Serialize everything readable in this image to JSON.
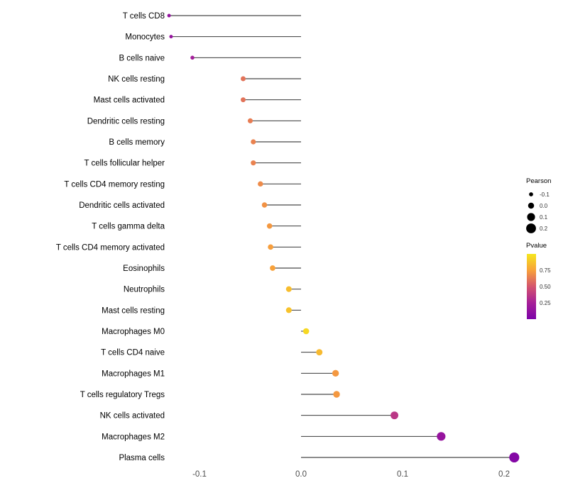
{
  "chart_data": {
    "type": "lollipop",
    "title": "",
    "xlabel": "",
    "ylabel": "",
    "xlim": [
      -0.155,
      0.225
    ],
    "grid": false,
    "x_ticks": [
      {
        "value": -0.1,
        "label": "-0.1"
      },
      {
        "value": 0.0,
        "label": "0.0"
      },
      {
        "value": 0.1,
        "label": "0.1"
      },
      {
        "value": 0.2,
        "label": "0.2"
      }
    ],
    "points": [
      {
        "label": "T cells CD8",
        "pearson": -0.13,
        "pvalue": 0.14
      },
      {
        "label": "Monocytes",
        "pearson": -0.128,
        "pvalue": 0.15
      },
      {
        "label": "B cells naive",
        "pearson": -0.107,
        "pvalue": 0.23
      },
      {
        "label": "NK cells resting",
        "pearson": -0.057,
        "pvalue": 0.6
      },
      {
        "label": "Mast cells activated",
        "pearson": -0.057,
        "pvalue": 0.6
      },
      {
        "label": "Dendritic cells resting",
        "pearson": -0.05,
        "pvalue": 0.63
      },
      {
        "label": "B cells memory",
        "pearson": -0.047,
        "pvalue": 0.65
      },
      {
        "label": "T cells follicular helper",
        "pearson": -0.047,
        "pvalue": 0.65
      },
      {
        "label": "T cells CD4 memory resting",
        "pearson": -0.04,
        "pvalue": 0.68
      },
      {
        "label": "Dendritic cells activated",
        "pearson": -0.036,
        "pvalue": 0.7
      },
      {
        "label": "T cells gamma delta",
        "pearson": -0.031,
        "pvalue": 0.72
      },
      {
        "label": "T cells CD4 memory activated",
        "pearson": -0.03,
        "pvalue": 0.74
      },
      {
        "label": "Eosinophils",
        "pearson": -0.028,
        "pvalue": 0.75
      },
      {
        "label": "Neutrophils",
        "pearson": -0.012,
        "pvalue": 0.85
      },
      {
        "label": "Mast cells resting",
        "pearson": -0.012,
        "pvalue": 0.87
      },
      {
        "label": "Macrophages M0",
        "pearson": 0.005,
        "pvalue": 0.95
      },
      {
        "label": "T cells CD4 naive",
        "pearson": 0.018,
        "pvalue": 0.84
      },
      {
        "label": "Macrophages M1",
        "pearson": 0.034,
        "pvalue": 0.72
      },
      {
        "label": "T cells regulatory Tregs",
        "pearson": 0.035,
        "pvalue": 0.72
      },
      {
        "label": "NK cells activated",
        "pearson": 0.092,
        "pvalue": 0.36
      },
      {
        "label": "Macrophages M2",
        "pearson": 0.138,
        "pvalue": 0.15
      },
      {
        "label": "Plasma cells",
        "pearson": 0.21,
        "pvalue": 0.04
      }
    ],
    "size_legend": {
      "title": "Pearson",
      "entries": [
        {
          "value": -0.1,
          "label": "-0.1"
        },
        {
          "value": 0.0,
          "label": "0.0"
        },
        {
          "value": 0.1,
          "label": "0.1"
        },
        {
          "value": 0.2,
          "label": "0.2"
        }
      ]
    },
    "color_legend": {
      "title": "Pvalue",
      "ticks": [
        {
          "value": 0.75,
          "label": "0.75"
        },
        {
          "value": 0.5,
          "label": "0.50"
        },
        {
          "value": 0.25,
          "label": "0.25"
        }
      ]
    },
    "color_scale": {
      "name": "plasma-like (low pvalue = purple, high pvalue = yellow)",
      "stops": [
        [
          0.0,
          "#7D03A8"
        ],
        [
          0.25,
          "#A62098"
        ],
        [
          0.5,
          "#D4546E"
        ],
        [
          0.75,
          "#F8A13A"
        ],
        [
          1.0,
          "#F5E61D"
        ]
      ]
    },
    "style": {
      "stem_color": "#1a1a1a",
      "label_color": "#000000",
      "tick_color": "#4d4d4d",
      "legend_title_color": "#000000",
      "legend_label_color": "#333333",
      "legend_dot_color": "#000000",
      "background": "#ffffff"
    }
  }
}
